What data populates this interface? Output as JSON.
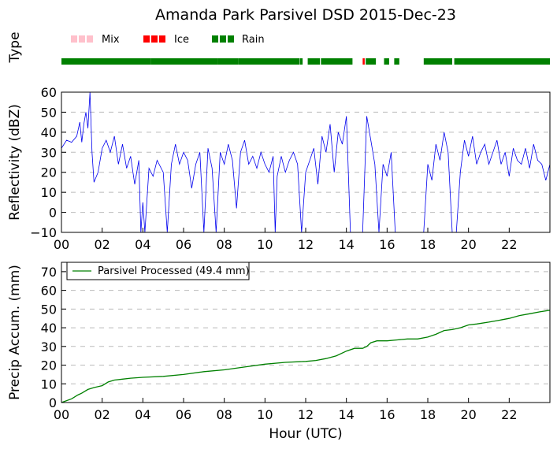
{
  "title": "Amanda Park Parsivel DSD 2015-Dec-23",
  "chart_data": [
    {
      "type": "line",
      "panel": "precip-type",
      "ylabel": "Type",
      "legend": [
        "Mix",
        "Ice",
        "Rain"
      ],
      "colors": {
        "Mix": "#ffc0cb",
        "Ice": "#ff0000",
        "Rain": "#008000"
      },
      "xlim": [
        0,
        24
      ],
      "segments": [
        {
          "type": "Rain",
          "start": 0.0,
          "end": 4.4
        },
        {
          "type": "Rain",
          "start": 4.4,
          "end": 7.7
        },
        {
          "type": "Rain",
          "start": 7.7,
          "end": 8.7
        },
        {
          "type": "Rain",
          "start": 8.7,
          "end": 11.7
        },
        {
          "type": "Rain",
          "start": 11.72,
          "end": 11.85
        },
        {
          "type": "Rain",
          "start": 12.1,
          "end": 12.7
        },
        {
          "type": "Rain",
          "start": 12.75,
          "end": 14.3
        },
        {
          "type": "Ice",
          "start": 14.8,
          "end": 14.9
        },
        {
          "type": "Rain",
          "start": 14.95,
          "end": 15.45
        },
        {
          "type": "Rain",
          "start": 15.85,
          "end": 16.1
        },
        {
          "type": "Rain",
          "start": 16.35,
          "end": 16.6
        },
        {
          "type": "Rain",
          "start": 17.8,
          "end": 19.2
        },
        {
          "type": "Rain",
          "start": 19.3,
          "end": 24.0
        }
      ]
    },
    {
      "type": "line",
      "panel": "reflectivity",
      "ylabel": "Reflectivity (dBZ)",
      "color": "#0000ee",
      "xlim": [
        0,
        24
      ],
      "ylim": [
        -10,
        60
      ],
      "yticks": [
        "60",
        "50",
        "40",
        "30",
        "20",
        "10",
        "0",
        "−10"
      ],
      "xticks": [
        "00",
        "02",
        "04",
        "06",
        "08",
        "10",
        "12",
        "14",
        "16",
        "18",
        "20",
        "22"
      ],
      "gridlines": "horizontal-dashed",
      "x": [
        0.0,
        0.25,
        0.5,
        0.75,
        0.9,
        1.0,
        1.1,
        1.2,
        1.3,
        1.4,
        1.5,
        1.6,
        1.8,
        2.0,
        2.2,
        2.4,
        2.6,
        2.8,
        3.0,
        3.2,
        3.4,
        3.6,
        3.8,
        3.9,
        4.0,
        4.1,
        4.3,
        4.5,
        4.7,
        5.0,
        5.2,
        5.4,
        5.6,
        5.8,
        6.0,
        6.2,
        6.4,
        6.6,
        6.8,
        7.0,
        7.2,
        7.4,
        7.6,
        7.8,
        8.0,
        8.2,
        8.4,
        8.6,
        8.8,
        9.0,
        9.2,
        9.4,
        9.6,
        9.8,
        10.0,
        10.2,
        10.4,
        10.5,
        10.6,
        10.8,
        11.0,
        11.2,
        11.4,
        11.6,
        11.8,
        12.0,
        12.2,
        12.4,
        12.6,
        12.8,
        13.0,
        13.2,
        13.4,
        13.6,
        13.8,
        14.0,
        14.2,
        14.4,
        14.6,
        14.8,
        15.0,
        15.2,
        15.4,
        15.6,
        15.8,
        16.0,
        16.2,
        16.4,
        16.6,
        17.0,
        17.5,
        17.8,
        18.0,
        18.2,
        18.4,
        18.6,
        18.8,
        19.0,
        19.2,
        19.4,
        19.6,
        19.8,
        20.0,
        20.2,
        20.4,
        20.6,
        20.8,
        21.0,
        21.2,
        21.4,
        21.6,
        21.8,
        22.0,
        22.2,
        22.4,
        22.6,
        22.8,
        23.0,
        23.2,
        23.4,
        23.6,
        23.8,
        24.0
      ],
      "values": [
        32,
        36,
        35,
        38,
        45,
        35,
        44,
        50,
        42,
        60,
        30,
        15,
        20,
        32,
        36,
        30,
        38,
        24,
        34,
        22,
        28,
        14,
        26,
        -10,
        5,
        -10,
        22,
        18,
        26,
        20,
        -10,
        24,
        34,
        24,
        30,
        26,
        12,
        24,
        30,
        -10,
        32,
        22,
        -10,
        30,
        24,
        34,
        26,
        2,
        30,
        36,
        24,
        28,
        22,
        30,
        24,
        20,
        28,
        -10,
        18,
        28,
        20,
        26,
        30,
        24,
        -10,
        20,
        26,
        32,
        14,
        38,
        30,
        44,
        20,
        40,
        34,
        48,
        -10,
        -10,
        -10,
        -10,
        48,
        36,
        24,
        -10,
        24,
        18,
        30,
        -10,
        -10,
        -10,
        -10,
        -10,
        24,
        16,
        34,
        26,
        40,
        30,
        -10,
        -10,
        20,
        36,
        28,
        38,
        24,
        30,
        34,
        24,
        30,
        36,
        24,
        30,
        18,
        32,
        26,
        24,
        32,
        22,
        34,
        26,
        24,
        16,
        24
      ]
    },
    {
      "type": "line",
      "panel": "precip-accumulation",
      "ylabel": "Precip Accum. (mm)",
      "xlabel": "Hour (UTC)",
      "color": "#008000",
      "xlim": [
        0,
        24
      ],
      "ylim": [
        0,
        75
      ],
      "yticks": [
        "0",
        "10",
        "20",
        "30",
        "40",
        "50",
        "60",
        "70"
      ],
      "xticks": [
        "00",
        "02",
        "04",
        "06",
        "08",
        "10",
        "12",
        "14",
        "16",
        "18",
        "20",
        "22"
      ],
      "gridlines": "horizontal-dashed",
      "legend": "Parsivel Processed (49.4 mm)",
      "legend_position": "top-left",
      "x": [
        0,
        0.5,
        0.8,
        1.0,
        1.3,
        1.6,
        2.0,
        2.3,
        2.6,
        3.0,
        3.4,
        4.0,
        5.0,
        6.0,
        7.0,
        8.0,
        9.0,
        10.0,
        11.0,
        12.0,
        12.5,
        13.0,
        13.5,
        14.0,
        14.4,
        14.8,
        15.0,
        15.2,
        15.5,
        16.0,
        16.5,
        17.0,
        17.5,
        18.0,
        18.4,
        18.8,
        19.2,
        19.6,
        20.0,
        20.4,
        21.0,
        21.5,
        22.0,
        22.5,
        23.0,
        23.5,
        24.0
      ],
      "values": [
        0,
        2,
        4,
        5,
        7,
        8,
        9,
        11,
        12,
        12.5,
        13,
        13.5,
        14,
        15,
        16.5,
        17.5,
        19,
        20.5,
        21.5,
        22,
        22.5,
        23.5,
        25,
        27.5,
        29,
        29,
        30,
        32,
        33,
        33,
        33.5,
        34,
        34,
        35,
        36.5,
        38.5,
        39,
        40,
        41.5,
        42,
        43,
        44,
        45,
        46.5,
        47.5,
        48.5,
        49.4
      ]
    }
  ]
}
